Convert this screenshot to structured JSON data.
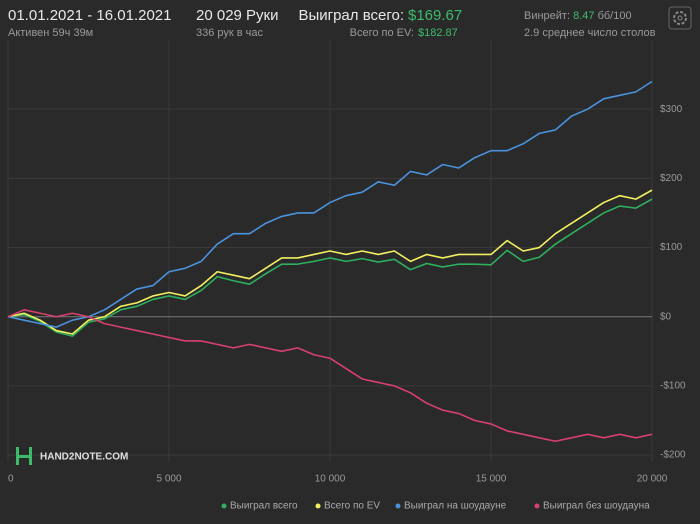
{
  "header": {
    "date_range": "01.01.2021 - 16.01.2021",
    "active": "Активен 59ч 39м",
    "hands": "20 029 Руки",
    "hands_per_hour": "336 рук в час",
    "won_label": "Выиграл всего:",
    "won_value": "$169.67",
    "ev_label": "Всего по EV:",
    "ev_value": "$182.87",
    "winrate_label": "Винрейт:",
    "winrate_value": "8.47",
    "winrate_unit": "бб/100",
    "tables": "2.9 среднее число столов"
  },
  "logo": "HAND2NOTE.COM",
  "chart_data": {
    "type": "line",
    "x": [
      0,
      500,
      1000,
      1500,
      2000,
      2500,
      3000,
      3500,
      4000,
      4500,
      5000,
      5500,
      6000,
      6500,
      7000,
      7500,
      8000,
      8500,
      9000,
      9500,
      10000,
      10500,
      11000,
      11500,
      12000,
      12500,
      13000,
      13500,
      14000,
      14500,
      15000,
      15500,
      16000,
      16500,
      17000,
      17500,
      18000,
      18500,
      19000,
      19500,
      20000
    ],
    "series": [
      {
        "name": "Выиграл всего",
        "color": "#2eaf5e",
        "values": [
          0,
          3,
          -7,
          -22,
          -28,
          -8,
          -3,
          10,
          15,
          25,
          30,
          25,
          38,
          58,
          52,
          47,
          62,
          76,
          76,
          80,
          85,
          80,
          84,
          79,
          83,
          68,
          77,
          72,
          76,
          76,
          75,
          96,
          80,
          86,
          105,
          120,
          135,
          150,
          160,
          157,
          170
        ]
      },
      {
        "name": "Всего по EV",
        "color": "#f2f060",
        "values": [
          0,
          5,
          -5,
          -20,
          -25,
          -5,
          0,
          15,
          20,
          30,
          35,
          30,
          45,
          65,
          60,
          55,
          70,
          85,
          85,
          90,
          95,
          90,
          95,
          90,
          95,
          80,
          90,
          85,
          90,
          90,
          90,
          110,
          95,
          100,
          120,
          135,
          150,
          165,
          175,
          170,
          183
        ]
      },
      {
        "name": "Выиграл на шоудауне",
        "color": "#4a92dc",
        "values": [
          0,
          -5,
          -10,
          -15,
          -5,
          0,
          10,
          25,
          40,
          45,
          65,
          70,
          80,
          105,
          120,
          120,
          135,
          145,
          150,
          150,
          165,
          175,
          180,
          195,
          190,
          210,
          205,
          220,
          215,
          230,
          240,
          240,
          250,
          265,
          270,
          290,
          300,
          315,
          320,
          325,
          340
        ]
      },
      {
        "name": "Выиграл без шоудауна",
        "color": "#d8406e",
        "values": [
          0,
          10,
          5,
          0,
          5,
          0,
          -10,
          -15,
          -20,
          -25,
          -30,
          -35,
          -35,
          -40,
          -45,
          -40,
          -45,
          -50,
          -45,
          -55,
          -60,
          -75,
          -90,
          -95,
          -100,
          -110,
          -125,
          -135,
          -140,
          -150,
          -155,
          -165,
          -170,
          -175,
          -180,
          -175,
          -170,
          -175,
          -170,
          -175,
          -170
        ]
      }
    ],
    "xlim": [
      0,
      20000
    ],
    "ylim": [
      -210,
      400
    ],
    "xticks": [
      0,
      {
        "value": 5000,
        "label": "5 000"
      },
      {
        "value": 10000,
        "label": "10 000"
      },
      {
        "value": 15000,
        "label": "15 000"
      },
      {
        "value": 20000,
        "label": "20 000"
      }
    ],
    "yticks": [
      {
        "value": -200,
        "label": "-$200"
      },
      {
        "value": -100,
        "label": "-$100"
      },
      {
        "value": 0,
        "label": "$0"
      },
      {
        "value": 100,
        "label": "$100"
      },
      {
        "value": 200,
        "label": "$200"
      },
      {
        "value": 300,
        "label": "$300"
      }
    ],
    "grid": true
  }
}
